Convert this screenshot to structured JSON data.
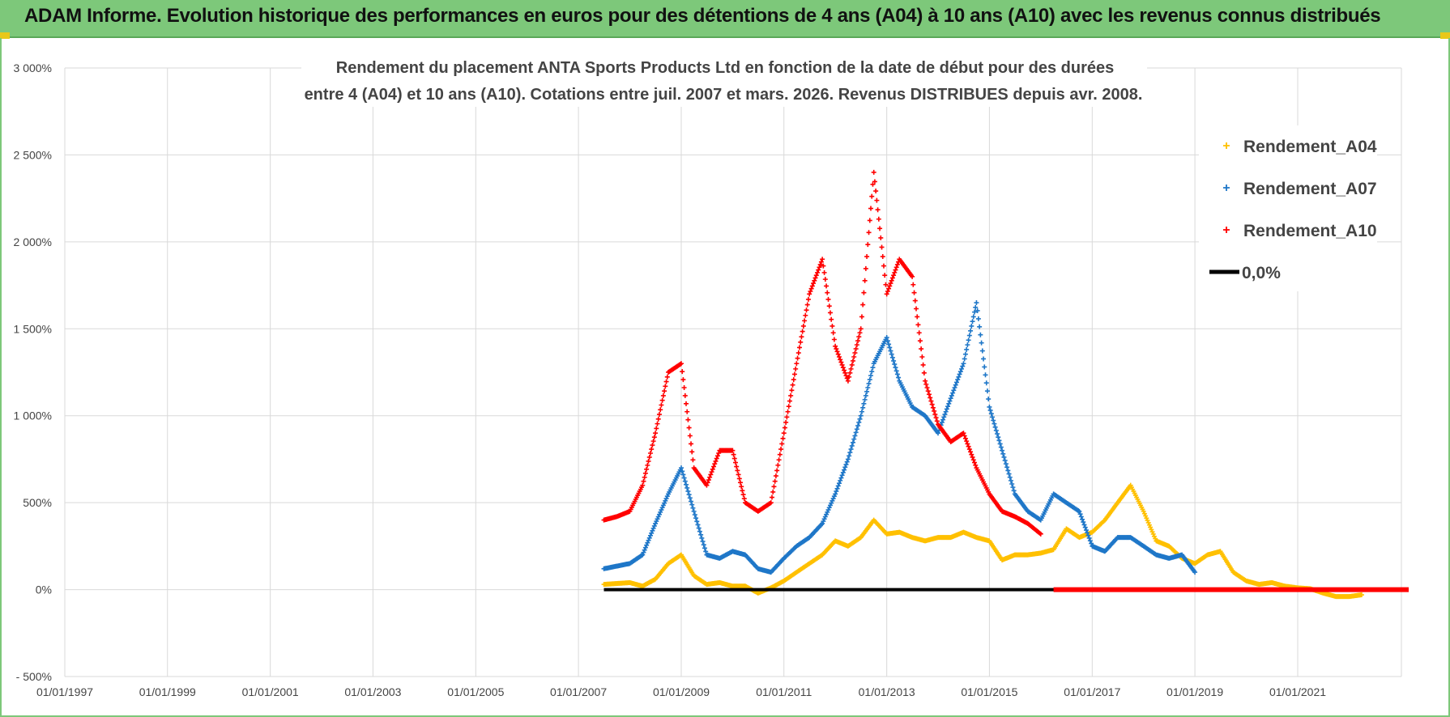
{
  "header": {
    "title": "ADAM Informe. Evolution historique des performances en euros pour des détentions de 4 ans (A04) à 10 ans (A10) avec les revenus connus distribués"
  },
  "chart_data": {
    "type": "scatter",
    "title": [
      "Rendement du placement ANTA Sports Products Ltd en fonction de la date de début pour des durées",
      "entre 4 (A04) et 10 ans (A10).  Cotations entre juil. 2007 et mars. 2026. Revenus DISTRIBUES depuis avr. 2008."
    ],
    "xlabel": "",
    "ylabel": "",
    "x_ticks": [
      "01/01/1997",
      "01/01/1999",
      "01/01/2001",
      "01/01/2003",
      "01/01/2005",
      "01/01/2007",
      "01/01/2009",
      "01/01/2011",
      "01/01/2013",
      "01/01/2015",
      "01/01/2017",
      "01/01/2019",
      "01/01/2021"
    ],
    "xlim": [
      "1997-01-01",
      "2023-03-01"
    ],
    "y_ticks": [
      "- 500%",
      "0%",
      "500%",
      "1 000%",
      "1 500%",
      "2 000%",
      "2 500%",
      "3 000%"
    ],
    "ylim": [
      -500,
      3000
    ],
    "grid": true,
    "legend_position": "top-right",
    "series": [
      {
        "name": "Rendement_A04",
        "color": "#ffc000",
        "marker": "plus",
        "x": [
          "2007-07-01",
          "2008-01-01",
          "2008-04-01",
          "2008-07-01",
          "2008-10-01",
          "2009-01-01",
          "2009-04-01",
          "2009-07-01",
          "2009-10-01",
          "2010-01-01",
          "2010-04-01",
          "2010-07-01",
          "2010-10-01",
          "2011-01-01",
          "2011-04-01",
          "2011-07-01",
          "2011-10-01",
          "2012-01-01",
          "2012-04-01",
          "2012-07-01",
          "2012-10-01",
          "2013-01-01",
          "2013-04-01",
          "2013-07-01",
          "2013-10-01",
          "2014-01-01",
          "2014-04-01",
          "2014-07-01",
          "2014-10-01",
          "2015-01-01",
          "2015-04-01",
          "2015-07-01",
          "2015-10-01",
          "2016-01-01",
          "2016-04-01",
          "2016-07-01",
          "2016-10-01",
          "2017-01-01",
          "2017-04-01",
          "2017-07-01",
          "2017-10-01",
          "2018-01-01",
          "2018-04-01",
          "2018-07-01",
          "2018-10-01",
          "2019-01-01",
          "2019-04-01",
          "2019-07-01",
          "2019-10-01",
          "2020-01-01",
          "2020-04-01",
          "2020-07-01",
          "2020-10-01",
          "2021-01-01",
          "2021-04-01",
          "2021-07-01",
          "2021-10-01",
          "2022-01-01",
          "2022-04-01"
        ],
        "y": [
          30,
          40,
          20,
          60,
          150,
          200,
          80,
          30,
          40,
          20,
          20,
          -20,
          10,
          50,
          100,
          150,
          200,
          280,
          250,
          300,
          400,
          320,
          330,
          300,
          280,
          300,
          300,
          330,
          300,
          280,
          170,
          200,
          200,
          210,
          230,
          350,
          300,
          330,
          400,
          500,
          600,
          450,
          280,
          250,
          180,
          150,
          200,
          220,
          100,
          50,
          30,
          40,
          20,
          10,
          5,
          -20,
          -40,
          -40,
          -30
        ]
      },
      {
        "name": "Rendement_A07",
        "color": "#1f77c8",
        "marker": "plus",
        "x": [
          "2007-07-01",
          "2008-01-01",
          "2008-04-01",
          "2008-07-01",
          "2008-10-01",
          "2009-01-01",
          "2009-04-01",
          "2009-07-01",
          "2009-10-01",
          "2010-01-01",
          "2010-04-01",
          "2010-07-01",
          "2010-10-01",
          "2011-01-01",
          "2011-04-01",
          "2011-07-01",
          "2011-10-01",
          "2012-01-01",
          "2012-04-01",
          "2012-07-01",
          "2012-10-01",
          "2013-01-01",
          "2013-04-01",
          "2013-07-01",
          "2013-10-01",
          "2014-01-01",
          "2014-04-01",
          "2014-07-01",
          "2014-10-01",
          "2015-01-01",
          "2015-04-01",
          "2015-07-01",
          "2015-10-01",
          "2016-01-01",
          "2016-04-01",
          "2016-07-01",
          "2016-10-01",
          "2017-01-01",
          "2017-04-01",
          "2017-07-01",
          "2017-10-01",
          "2018-01-01",
          "2018-04-01",
          "2018-07-01",
          "2018-10-01",
          "2019-01-01"
        ],
        "y": [
          120,
          150,
          200,
          380,
          550,
          700,
          450,
          200,
          180,
          220,
          200,
          120,
          100,
          180,
          250,
          300,
          380,
          550,
          750,
          1000,
          1300,
          1450,
          1200,
          1050,
          1000,
          900,
          1100,
          1300,
          1650,
          1050,
          800,
          550,
          450,
          400,
          550,
          500,
          450,
          250,
          220,
          300,
          300,
          250,
          200,
          180,
          200,
          100
        ]
      },
      {
        "name": "Rendement_A10",
        "color": "#ff0000",
        "marker": "plus",
        "x": [
          "2007-07-01",
          "2007-10-01",
          "2008-01-01",
          "2008-04-01",
          "2008-07-01",
          "2008-10-01",
          "2009-01-01",
          "2009-04-01",
          "2009-07-01",
          "2009-10-01",
          "2010-01-01",
          "2010-04-01",
          "2010-07-01",
          "2010-10-01",
          "2011-01-01",
          "2011-04-01",
          "2011-07-01",
          "2011-10-01",
          "2012-01-01",
          "2012-04-01",
          "2012-07-01",
          "2012-10-01",
          "2013-01-01",
          "2013-04-01",
          "2013-07-01",
          "2013-10-01",
          "2014-01-01",
          "2014-04-01",
          "2014-07-01",
          "2014-10-01",
          "2015-01-01",
          "2015-04-01",
          "2015-07-01",
          "2015-10-01",
          "2016-01-01"
        ],
        "y": [
          400,
          420,
          450,
          600,
          900,
          1250,
          1300,
          700,
          600,
          800,
          800,
          500,
          450,
          500,
          900,
          1300,
          1700,
          1900,
          1400,
          1200,
          1500,
          2400,
          1700,
          1900,
          1800,
          1200,
          950,
          850,
          900,
          700,
          550,
          450,
          420,
          380,
          320
        ]
      },
      {
        "name": "0,0%",
        "color": "#000000",
        "marker": "line",
        "x": [
          "2007-07-01",
          "2023-03-01"
        ],
        "y": [
          0,
          0
        ]
      }
    ]
  }
}
